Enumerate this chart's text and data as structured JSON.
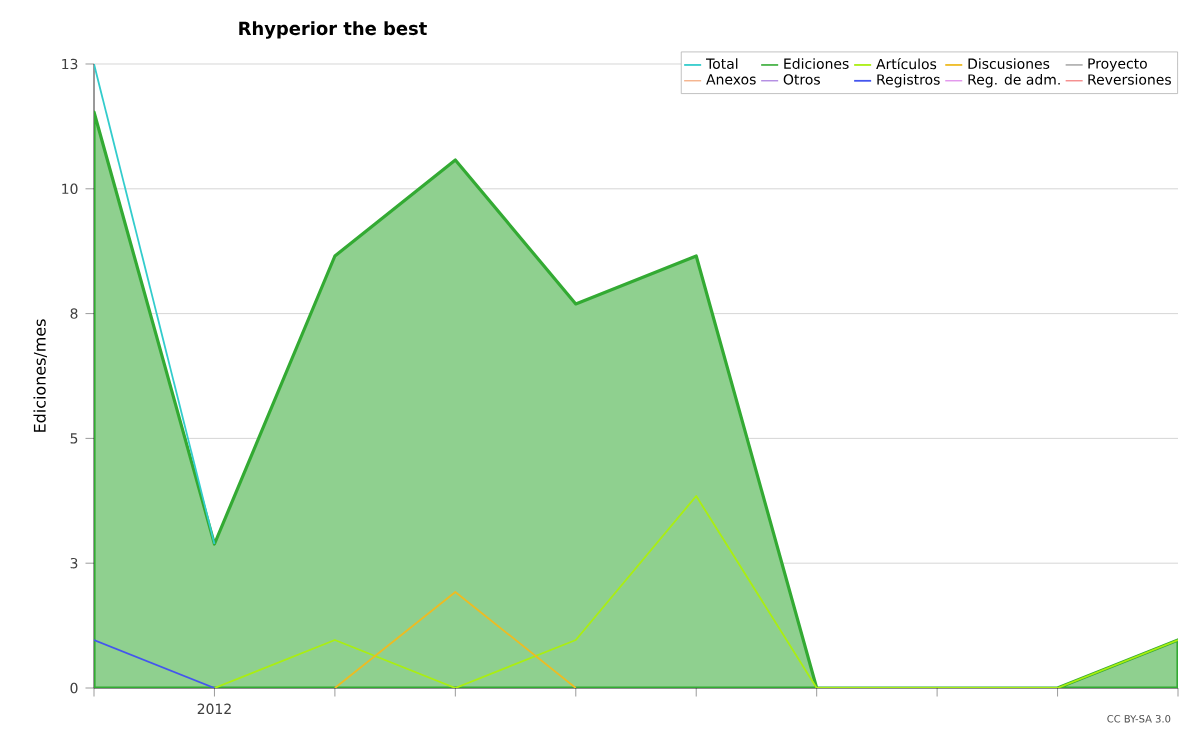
{
  "chart_data": {
    "type": "line",
    "title": "Rhyperior the best",
    "ylabel": "Ediciones/mes",
    "categories": [
      null,
      "2012",
      null,
      null,
      null,
      null,
      null,
      null,
      null,
      null
    ],
    "ylim": [
      0,
      13
    ],
    "yticks": [
      0,
      {
        "value": 2.6,
        "label": "3"
      },
      {
        "value": 5.2,
        "label": "5"
      },
      {
        "value": 7.8,
        "label": "8"
      },
      {
        "value": 10.4,
        "label": "10"
      },
      13
    ],
    "grid": "y",
    "legend": "top right",
    "marker": "none",
    "annotations": [
      "CC BY-SA 3.0"
    ],
    "series": [
      {
        "name": "Total",
        "color": "#33cccc",
        "values": [
          13,
          3,
          null,
          null,
          null,
          null,
          null,
          null,
          null,
          null
        ]
      },
      {
        "name": "Ediciones",
        "type": "area",
        "color": "#33aa33",
        "values": [
          12,
          3,
          9,
          11,
          8,
          9,
          0,
          0,
          0,
          1
        ]
      },
      {
        "name": "Artículos",
        "color": "#aaee11",
        "values": [
          null,
          0,
          1,
          0,
          1,
          4,
          0,
          0,
          0,
          1
        ]
      },
      {
        "name": "Discusiones",
        "color": "#eebb22",
        "values": [
          null,
          null,
          0,
          2,
          0,
          null,
          null,
          null,
          null,
          null
        ]
      },
      {
        "name": "Proyecto",
        "color": "#555555",
        "values": [
          null,
          null,
          null,
          null,
          null,
          null,
          null,
          null,
          null,
          null
        ]
      },
      {
        "name": "Anexos",
        "color": "#ee7733",
        "values": [
          null,
          null,
          null,
          null,
          null,
          null,
          null,
          null,
          null,
          null
        ]
      },
      {
        "name": "Otros",
        "color": "#7733cc",
        "values": [
          null,
          null,
          null,
          null,
          null,
          null,
          null,
          null,
          null,
          null
        ]
      },
      {
        "name": "Registros",
        "color": "#4455ee",
        "values": [
          1,
          0,
          null,
          null,
          null,
          null,
          null,
          null,
          null,
          null
        ]
      },
      {
        "name": "Reg. de adm.",
        "color": "#cc44dd",
        "values": [
          null,
          null,
          null,
          null,
          null,
          null,
          null,
          null,
          null,
          null
        ]
      },
      {
        "name": "Reversiones",
        "color": "#ee3333",
        "values": [
          null,
          null,
          null,
          null,
          null,
          null,
          null,
          null,
          null,
          null
        ]
      }
    ]
  }
}
